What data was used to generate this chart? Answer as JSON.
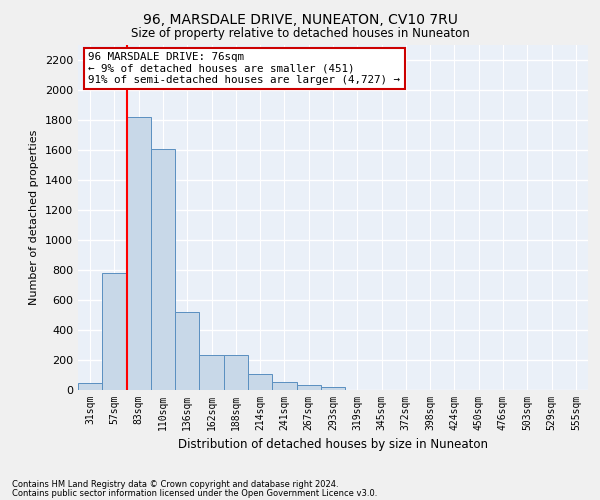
{
  "title": "96, MARSDALE DRIVE, NUNEATON, CV10 7RU",
  "subtitle": "Size of property relative to detached houses in Nuneaton",
  "xlabel": "Distribution of detached houses by size in Nuneaton",
  "ylabel": "Number of detached properties",
  "bar_categories": [
    "31sqm",
    "57sqm",
    "83sqm",
    "110sqm",
    "136sqm",
    "162sqm",
    "188sqm",
    "214sqm",
    "241sqm",
    "267sqm",
    "293sqm",
    "319sqm",
    "345sqm",
    "372sqm",
    "398sqm",
    "424sqm",
    "450sqm",
    "476sqm",
    "503sqm",
    "529sqm",
    "555sqm"
  ],
  "bar_values": [
    50,
    780,
    1820,
    1610,
    520,
    235,
    235,
    105,
    55,
    35,
    18,
    0,
    0,
    0,
    0,
    0,
    0,
    0,
    0,
    0,
    0
  ],
  "bar_color": "#c8d8e8",
  "bar_edge_color": "#5a8fc0",
  "ylim": [
    0,
    2300
  ],
  "yticks": [
    0,
    200,
    400,
    600,
    800,
    1000,
    1200,
    1400,
    1600,
    1800,
    2000,
    2200
  ],
  "annotation_title": "96 MARSDALE DRIVE: 76sqm",
  "annotation_line1": "← 9% of detached houses are smaller (451)",
  "annotation_line2": "91% of semi-detached houses are larger (4,727) →",
  "annotation_box_color": "#ffffff",
  "annotation_box_edge": "#cc0000",
  "footnote1": "Contains HM Land Registry data © Crown copyright and database right 2024.",
  "footnote2": "Contains public sector information licensed under the Open Government Licence v3.0.",
  "background_color": "#eaf0f8",
  "fig_background_color": "#f0f0f0",
  "grid_color": "#ffffff"
}
